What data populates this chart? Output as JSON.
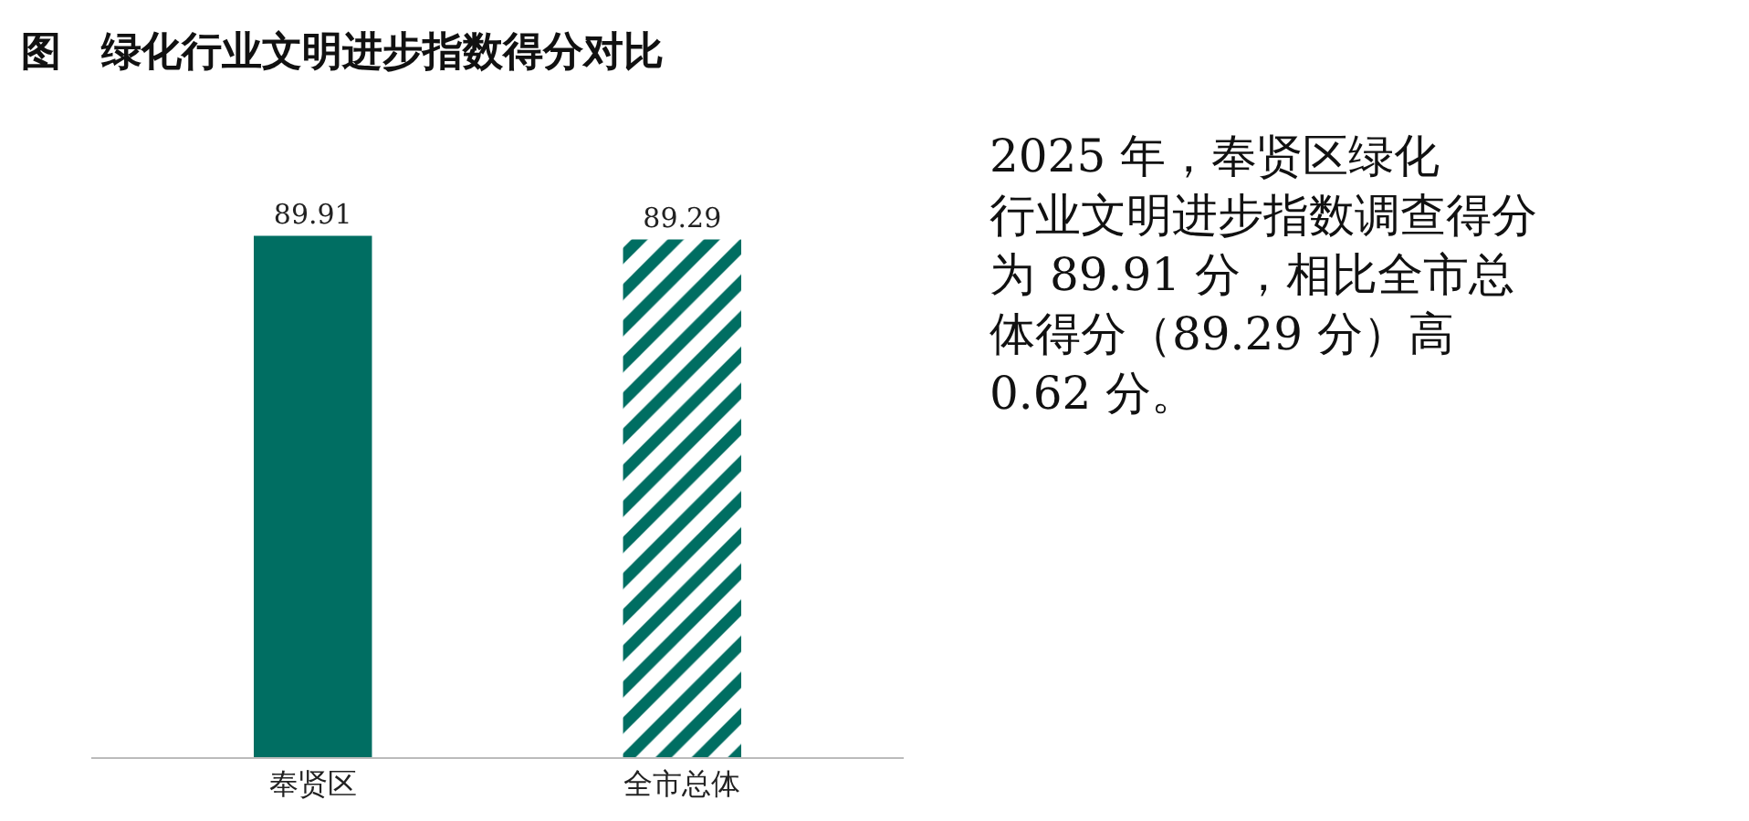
{
  "chart_data": {
    "type": "bar",
    "title": "图　绿化行业文明进步指数得分对比",
    "categories": [
      "奉贤区",
      "全市总体"
    ],
    "values": [
      89.91,
      89.29
    ],
    "colors": [
      "#006e62",
      "#006e62"
    ],
    "tick_labels": "x",
    "data_labels": true,
    "annotations": [
      "2025 年，奉贤区绿化行业文明进步指数调查得分为 89.91 分，相比全市总体得分（89.29 分）高 0.62 分。"
    ]
  }
}
